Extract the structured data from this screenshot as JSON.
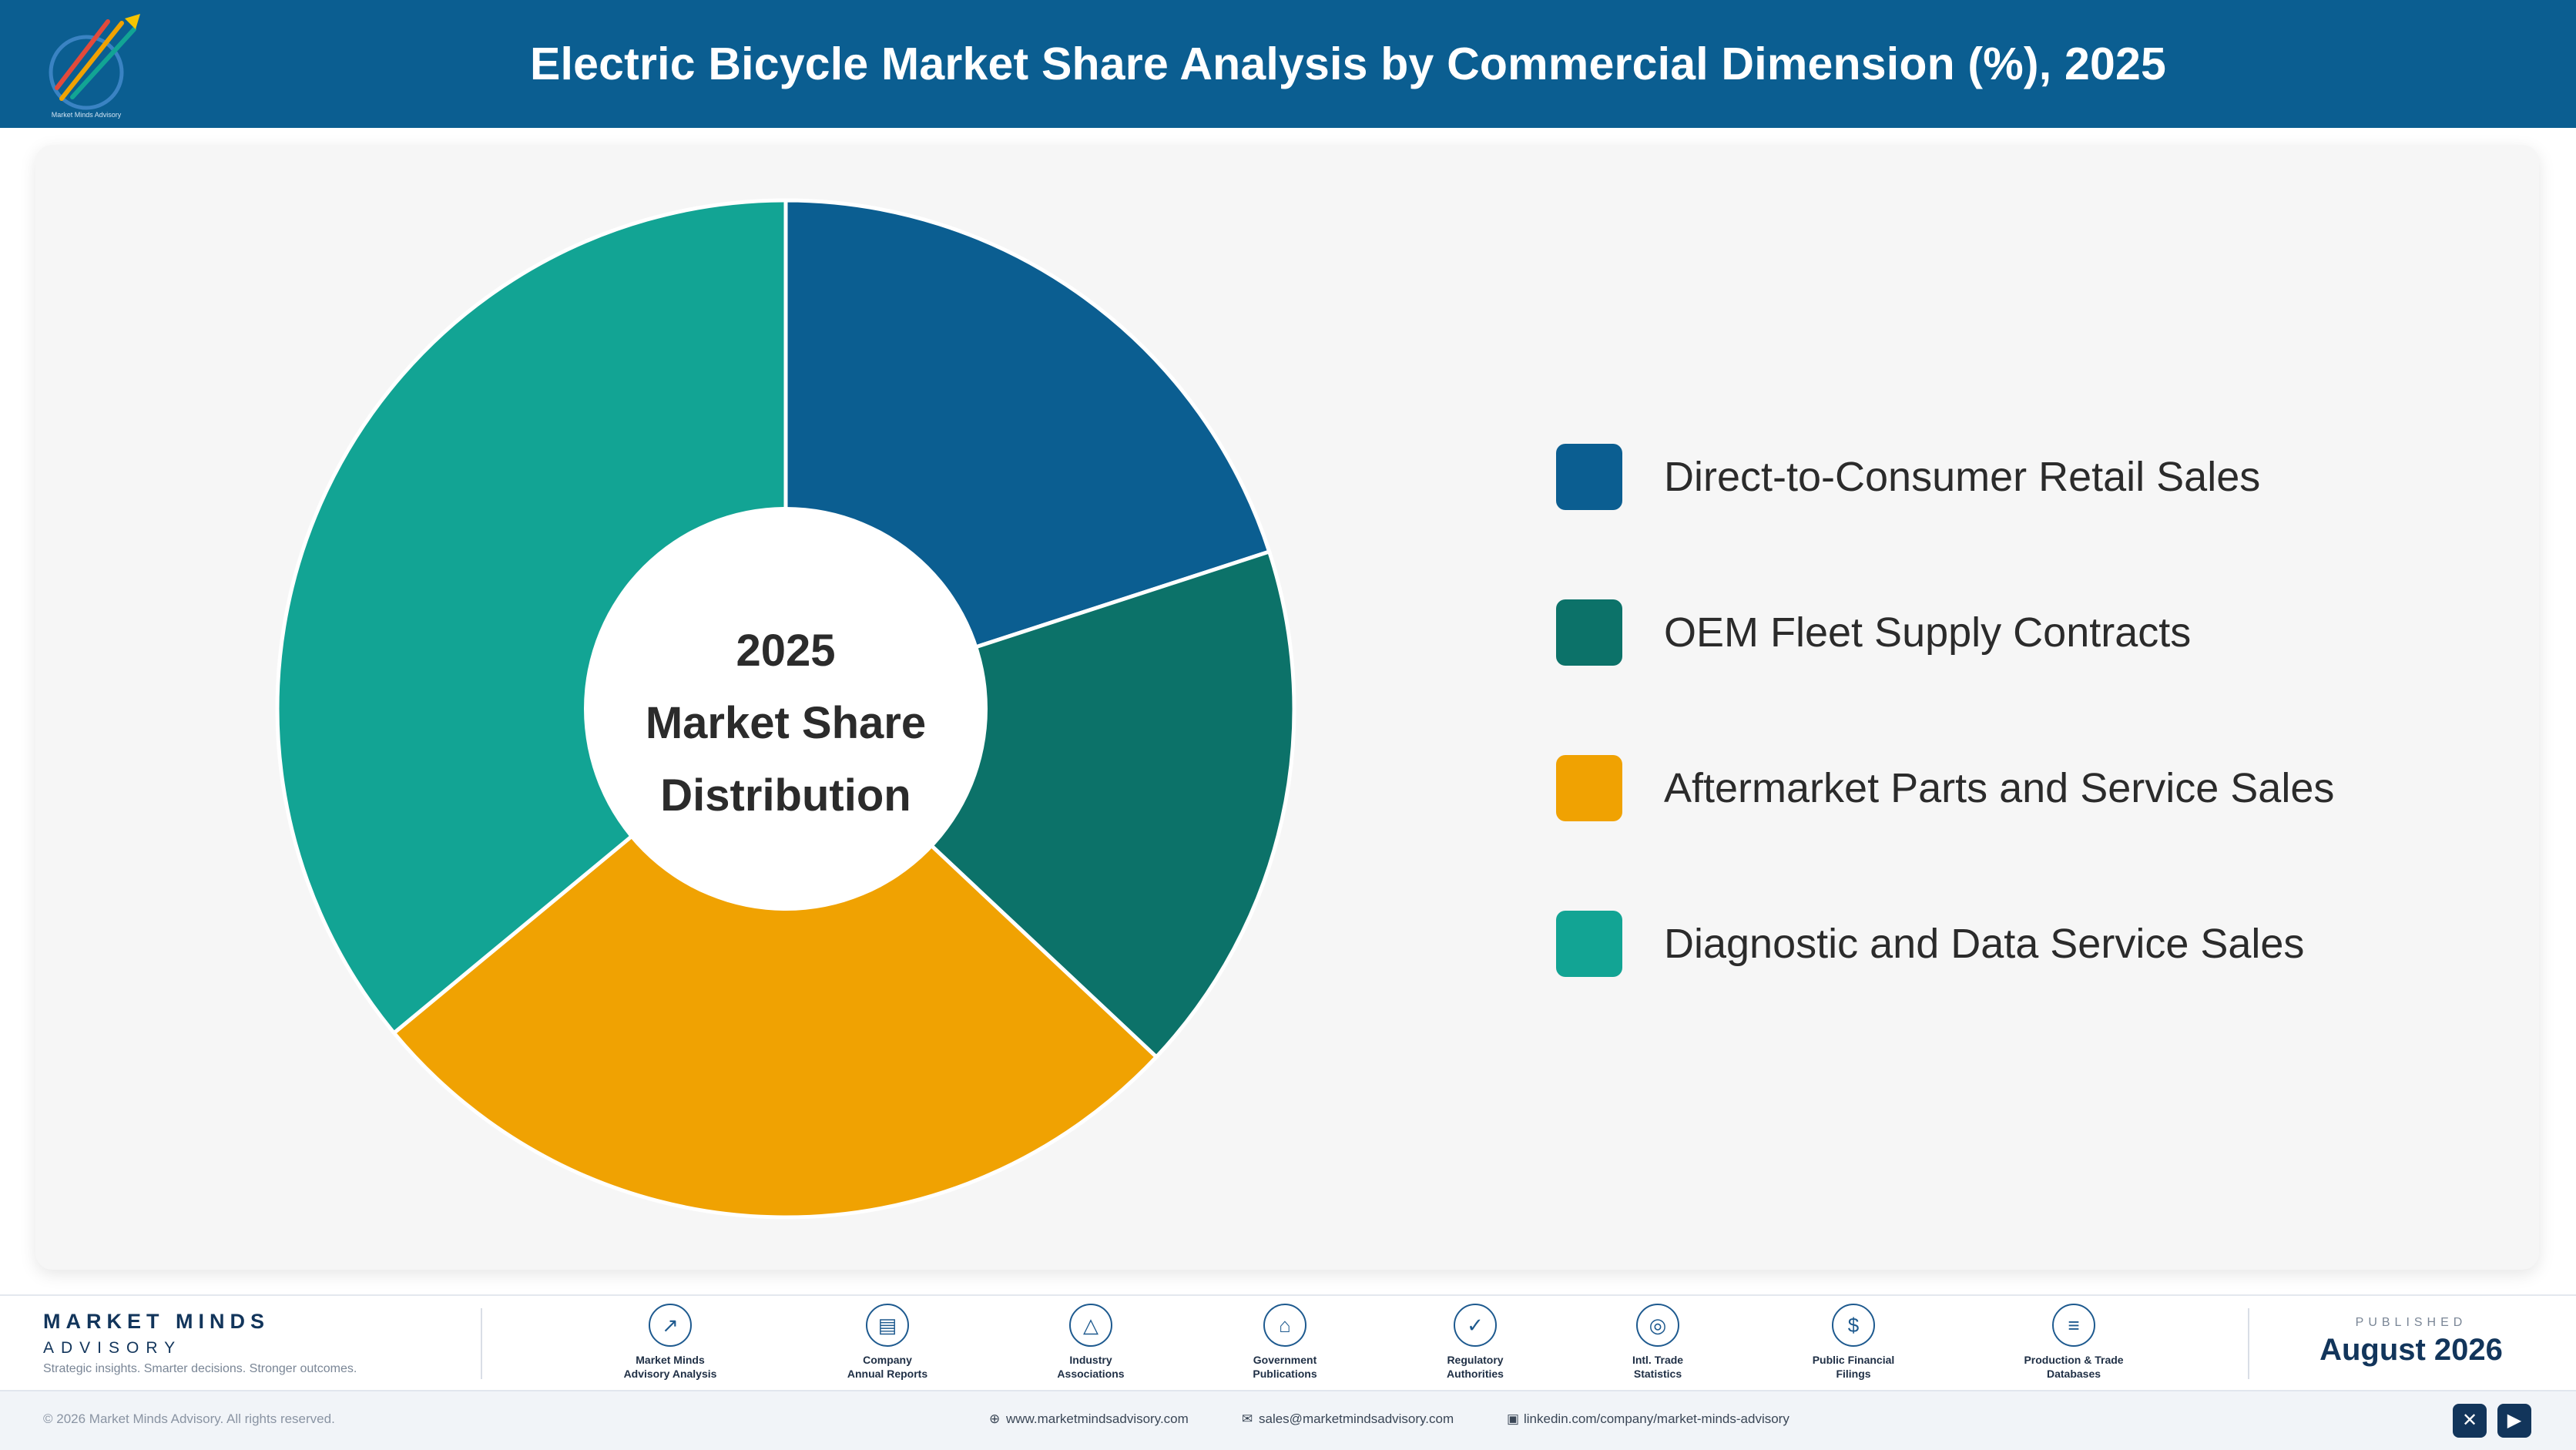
{
  "header": {
    "title": "Electric Bicycle Market Share Analysis by Commercial Dimension (%), 2025"
  },
  "chart_data": {
    "type": "pie",
    "center_label": [
      "2025",
      "Market Share",
      "Distribution"
    ],
    "categories": [
      "Direct-to-Consumer Retail Sales",
      "OEM Fleet Supply Contracts",
      "Aftermarket Parts and Service Sales",
      "Diagnostic and Data Service Sales"
    ],
    "values": [
      20,
      17,
      27,
      36
    ],
    "colors": [
      "#0b5e91",
      "#0c7269",
      "#f0a202",
      "#12a494"
    ],
    "legend_position": "right"
  },
  "footer": {
    "brand_name": "MARKET MINDS",
    "brand_sub": "ADVISORY",
    "tagline": "Strategic insights. Smarter decisions. Stronger outcomes.",
    "sources": [
      {
        "label": "Market Minds\nAdvisory Analysis",
        "icon": "chart-line-icon",
        "glyph": "↗"
      },
      {
        "label": "Company\nAnnual Reports",
        "icon": "document-icon",
        "glyph": "▤"
      },
      {
        "label": "Industry\nAssociations",
        "icon": "network-icon",
        "glyph": "△"
      },
      {
        "label": "Government\nPublications",
        "icon": "government-building-icon",
        "glyph": "⌂"
      },
      {
        "label": "Regulatory\nAuthorities",
        "icon": "shield-check-icon",
        "glyph": "✓"
      },
      {
        "label": "Intl. Trade\nStatistics",
        "icon": "globe-icon",
        "glyph": "◎"
      },
      {
        "label": "Public Financial\nFilings",
        "icon": "currency-coin-icon",
        "glyph": "$"
      },
      {
        "label": "Production & Trade\nDatabases",
        "icon": "database-icon",
        "glyph": "≡"
      }
    ],
    "published_label": "PUBLISHED",
    "published_date": "August 2026",
    "copyright": "© 2026 Market Minds Advisory. All rights reserved.",
    "website": "www.marketmindsadvisory.com",
    "email": "sales@marketmindsadvisory.com",
    "linkedin": "linkedin.com/company/market-minds-advisory"
  }
}
